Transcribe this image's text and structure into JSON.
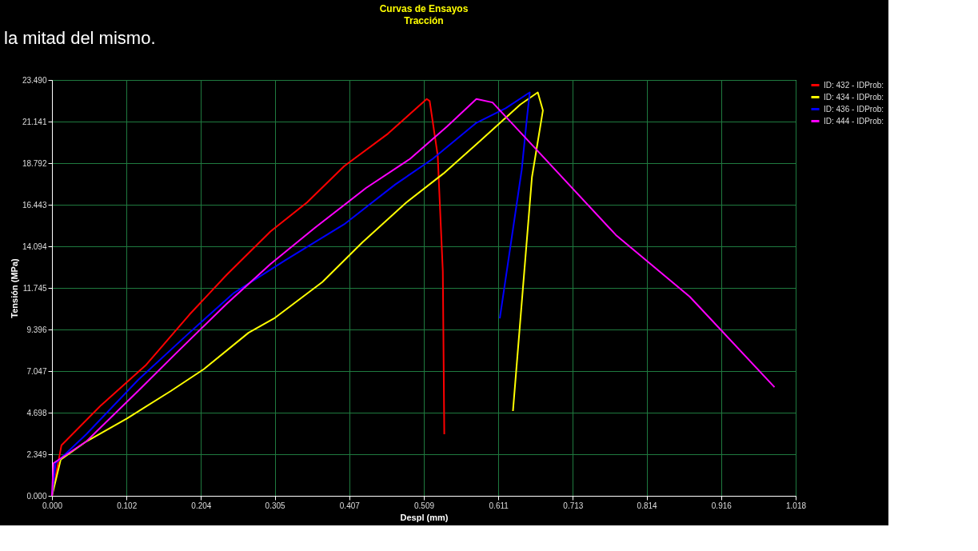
{
  "chart_data": {
    "type": "line",
    "title": "Curvas de Ensayos",
    "subtitle": "Tracción",
    "xlabel": "Despl (mm)",
    "ylabel": "Tensión (MPa)",
    "annotations": [
      "la mitad del mismo."
    ],
    "xlim": [
      0,
      1.018
    ],
    "xticks": [
      {
        "value": 0,
        "label": "0.000"
      },
      0.102,
      0.204,
      0.305,
      0.407,
      0.509,
      0.611,
      0.713,
      0.814,
      0.916,
      1.018
    ],
    "ylim": [
      0,
      23.49
    ],
    "yticks": [
      {
        "value": 0,
        "label": "0.000"
      },
      2.349,
      4.698,
      7.047,
      9.396,
      11.745,
      14.094,
      16.443,
      18.792,
      21.141,
      {
        "value": 23.49,
        "label": "23.490"
      }
    ],
    "grid": true,
    "legend": "right",
    "marker": "none",
    "line_style": "solid",
    "series": [
      {
        "name": "ID: 432 - IDProb:",
        "color": "#ff0000",
        "x": [
          0,
          0.013,
          0.067,
          0.128,
          0.188,
          0.239,
          0.299,
          0.349,
          0.4,
          0.46,
          0.513,
          0.517,
          0.528,
          0.535,
          0.537
        ],
        "values": [
          0,
          2.86,
          5.11,
          7.36,
          10.23,
          12.48,
          14.93,
          16.57,
          18.62,
          20.46,
          22.42,
          22.3,
          19.23,
          12.68,
          3.48
        ]
      },
      {
        "name": "ID: 434 - IDProb:",
        "color": "#ffff00",
        "x": [
          0,
          0.012,
          0.047,
          0.103,
          0.163,
          0.208,
          0.269,
          0.304,
          0.37,
          0.425,
          0.485,
          0.536,
          0.586,
          0.641,
          0.665,
          0.672,
          0.657,
          0.631
        ],
        "values": [
          0,
          2.05,
          3.07,
          4.38,
          5.93,
          7.16,
          9.21,
          10.02,
          12.07,
          14.32,
          16.57,
          18.21,
          20.05,
          22.1,
          22.79,
          21.77,
          18.0,
          4.79
        ]
      },
      {
        "name": "ID: 436 - IDProb:",
        "color": "#0000ff",
        "x": [
          0,
          0.005,
          0.047,
          0.118,
          0.188,
          0.249,
          0.319,
          0.4,
          0.47,
          0.521,
          0.581,
          0.621,
          0.654,
          0.65,
          0.643,
          0.613
        ],
        "values": [
          0,
          1.84,
          3.48,
          6.55,
          9.21,
          11.46,
          13.3,
          15.34,
          17.59,
          19.03,
          21.07,
          21.89,
          22.79,
          21.28,
          18.41,
          10.02
        ]
      },
      {
        "name": "ID: 444 - IDProb:",
        "color": "#ff00ff",
        "x": [
          0,
          0.002,
          0.047,
          0.118,
          0.168,
          0.239,
          0.299,
          0.36,
          0.43,
          0.49,
          0.541,
          0.581,
          0.603,
          0.652,
          0.772,
          0.873,
          0.989
        ],
        "values": [
          0,
          1.84,
          3.07,
          5.93,
          7.98,
          10.84,
          13.09,
          15.14,
          17.39,
          19.03,
          20.87,
          22.42,
          22.22,
          20.05,
          14.73,
          11.25,
          6.14
        ]
      }
    ]
  }
}
